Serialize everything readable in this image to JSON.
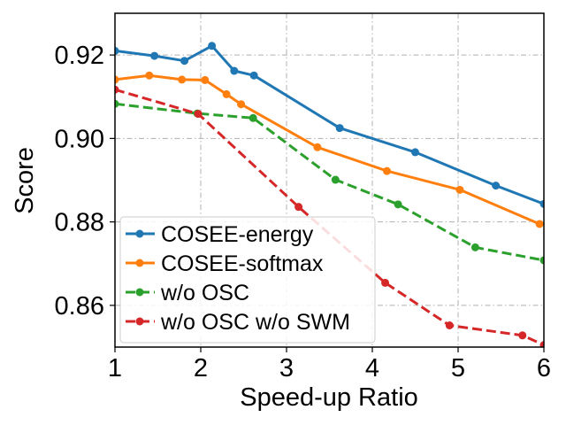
{
  "chart_data": {
    "type": "line",
    "title": "",
    "xlabel": "Speed-up Ratio",
    "ylabel": "Score",
    "xlim": [
      1,
      6
    ],
    "ylim": [
      0.85,
      0.93
    ],
    "xticks": [
      1,
      2,
      3,
      4,
      5,
      6
    ],
    "xtick_labels": [
      "1",
      "2",
      "3",
      "4",
      "5",
      "6"
    ],
    "yticks": [
      0.86,
      0.88,
      0.9,
      0.92
    ],
    "ytick_labels": [
      "0.86",
      "0.88",
      "0.90",
      "0.92"
    ],
    "grid": true,
    "legend_position": "lower-left",
    "series": [
      {
        "name": "COSEE-energy",
        "color": "#1f77b4",
        "dash": "solid",
        "x": [
          1.0,
          1.46,
          1.81,
          2.13,
          2.39,
          2.62,
          3.62,
          4.5,
          5.44,
          6.0
        ],
        "y": [
          0.921,
          0.9198,
          0.9186,
          0.9222,
          0.9162,
          0.9151,
          0.9025,
          0.8967,
          0.8887,
          0.8843
        ]
      },
      {
        "name": "COSEE-softmax",
        "color": "#ff7f0e",
        "dash": "solid",
        "x": [
          1.0,
          1.4,
          1.78,
          2.05,
          2.3,
          2.47,
          3.36,
          4.17,
          5.02,
          5.95
        ],
        "y": [
          0.9141,
          0.9151,
          0.9141,
          0.914,
          0.9106,
          0.9082,
          0.8979,
          0.8922,
          0.8877,
          0.8795
        ]
      },
      {
        "name": "w/o OSC",
        "color": "#2ca02c",
        "dash": "dashed",
        "x": [
          1.0,
          1.96,
          2.61,
          3.57,
          4.3,
          5.2,
          6.0
        ],
        "y": [
          0.9083,
          0.906,
          0.9049,
          0.8901,
          0.8842,
          0.8739,
          0.8708
        ]
      },
      {
        "name": "w/o OSC w/o SWM",
        "color": "#d62728",
        "dash": "dashed",
        "x": [
          1.0,
          1.97,
          3.14,
          4.15,
          4.9,
          5.75,
          6.0
        ],
        "y": [
          0.9117,
          0.9059,
          0.8836,
          0.8654,
          0.8552,
          0.8528,
          0.8505
        ]
      }
    ]
  }
}
